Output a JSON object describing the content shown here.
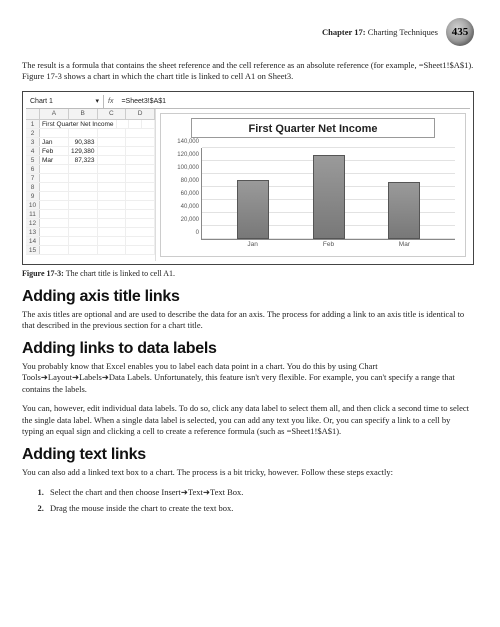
{
  "header": {
    "chapter_label_bold": "Chapter 17:",
    "chapter_label_rest": " Charting Techniques",
    "page_number": "435"
  },
  "intro_para": "The result is a formula that contains the sheet reference and the cell reference as an absolute reference (for example, =Sheet1!$A$1). Figure 17-3 shows a chart in which the chart title is linked to cell A1 on Sheet3.",
  "figure": {
    "name_box": "Chart 1",
    "fx": "fx",
    "formula": "=Sheet3!$A$1",
    "columns": [
      "A",
      "B",
      "C",
      "D"
    ],
    "rows": [
      {
        "n": "1",
        "a": "First Quarter Net Income",
        "b": "",
        "c": ""
      },
      {
        "n": "2",
        "a": "",
        "b": "",
        "c": ""
      },
      {
        "n": "3",
        "a": "Jan",
        "b": "90,383",
        "c": ""
      },
      {
        "n": "4",
        "a": "Feb",
        "b": "129,380",
        "c": ""
      },
      {
        "n": "5",
        "a": "Mar",
        "b": "87,323",
        "c": ""
      },
      {
        "n": "6",
        "a": "",
        "b": "",
        "c": ""
      },
      {
        "n": "7",
        "a": "",
        "b": "",
        "c": ""
      },
      {
        "n": "8",
        "a": "",
        "b": "",
        "c": ""
      },
      {
        "n": "9",
        "a": "",
        "b": "",
        "c": ""
      },
      {
        "n": "10",
        "a": "",
        "b": "",
        "c": ""
      },
      {
        "n": "11",
        "a": "",
        "b": "",
        "c": ""
      },
      {
        "n": "12",
        "a": "",
        "b": "",
        "c": ""
      },
      {
        "n": "13",
        "a": "",
        "b": "",
        "c": ""
      },
      {
        "n": "14",
        "a": "",
        "b": "",
        "c": ""
      },
      {
        "n": "15",
        "a": "",
        "b": "",
        "c": ""
      }
    ],
    "chart": {
      "type": "bar",
      "title": "First Quarter Net Income",
      "title_fontsize": 11,
      "categories": [
        "Jan",
        "Feb",
        "Mar"
      ],
      "values": [
        90383,
        129380,
        87323
      ],
      "ylim": [
        0,
        140000
      ],
      "ytick_step": 20000,
      "yticks": [
        "0",
        "20,000",
        "40,000",
        "60,000",
        "80,000",
        "100,000",
        "120,000",
        "140,000"
      ],
      "bar_color": "#787878",
      "bar_border": "#555555",
      "grid_color": "#e2e2e2",
      "background_color": "#ffffff",
      "bar_positions_pct": [
        20,
        50,
        80
      ],
      "bar_heights_pct": [
        64.6,
        92.4,
        62.4
      ]
    },
    "caption_bold": "Figure 17-3:",
    "caption_rest": " The chart title is linked to cell A1."
  },
  "sections": {
    "s1_title": "Adding axis title links",
    "s1_p1": "The axis titles are optional and are used to describe the data for an axis. The process for adding a link to an axis title is identical to that described in the previous section for a chart title.",
    "s2_title": "Adding links to data labels",
    "s2_p1": "You probably know that Excel enables you to label each data point in a chart. You do this by using Chart Tools➜Layout➜Labels➜Data Labels. Unfortunately, this feature isn't very flexible. For example, you can't specify a range that contains the labels.",
    "s2_p2": "You can, however, edit individual data labels. To do so, click any data label to select them all, and then click a second time to select the single data label. When a single data label is selected, you can add any text you like. Or, you can specify a link to a cell by typing an equal sign and clicking a cell to create a reference formula (such as =Sheet1!$A$1).",
    "s3_title": "Adding text links",
    "s3_p1": "You can also add a linked text box to a chart. The process is a bit tricky, however. Follow these steps exactly:",
    "steps": [
      "Select the chart and then choose Insert➜Text➜Text Box.",
      "Drag the mouse inside the chart to create the text box."
    ]
  }
}
